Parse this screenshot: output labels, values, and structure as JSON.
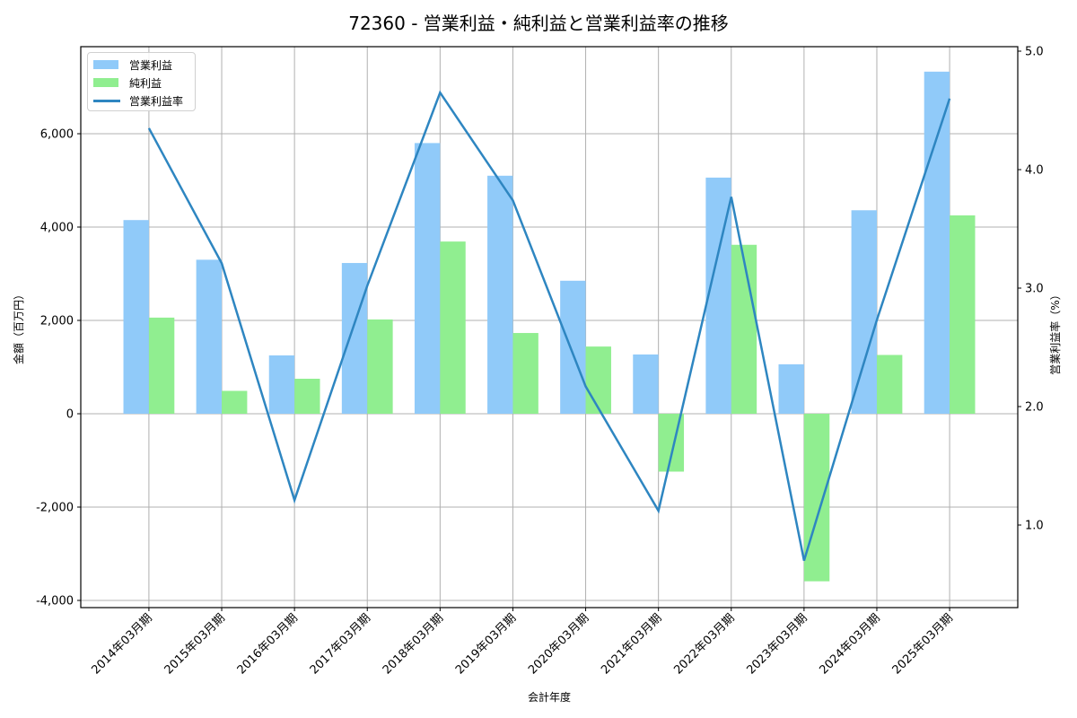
{
  "title": "72360 - 営業利益・純利益と営業利益率の推移",
  "chart_data": {
    "type": "bar",
    "title": "72360 - 営業利益・純利益と営業利益率の推移",
    "xlabel": "会計年度",
    "ylabel": "金額（百万円）",
    "y2label": "営業利益率（%）",
    "categories": [
      "2014年03月期",
      "2015年03月期",
      "2016年03月期",
      "2017年03月期",
      "2018年03月期",
      "2019年03月期",
      "2020年03月期",
      "2021年03月期",
      "2022年03月期",
      "2023年03月期",
      "2024年03月期",
      "2025年03月期"
    ],
    "series": [
      {
        "name": "営業利益",
        "type": "bar",
        "axis": "left",
        "color": "#90caf9",
        "values": [
          4150,
          3300,
          1250,
          3230,
          5800,
          5100,
          2850,
          1270,
          5060,
          1060,
          4360,
          7330
        ]
      },
      {
        "name": "純利益",
        "type": "bar",
        "axis": "left",
        "color": "#90ee90",
        "values": [
          2060,
          490,
          750,
          2020,
          3690,
          1730,
          1440,
          -1240,
          3620,
          -3590,
          1260,
          4250
        ]
      },
      {
        "name": "営業利益率",
        "type": "line",
        "axis": "right",
        "color": "#2e86c1",
        "values": [
          4.35,
          3.21,
          1.21,
          3.02,
          4.65,
          3.74,
          2.17,
          1.12,
          3.77,
          0.7,
          2.73,
          4.6
        ]
      }
    ],
    "ylim": [
      -4150,
      7850
    ],
    "y2lim": [
      0.27,
      5.05
    ],
    "yticks": [
      -4000,
      -2000,
      0,
      2000,
      4000,
      6000
    ],
    "ytick_labels": [
      "-4,000",
      "-2,000",
      "0",
      "2,000",
      "4,000",
      "6,000"
    ],
    "y2ticks": [
      1.0,
      2.0,
      3.0,
      4.0,
      5.0
    ],
    "y2tick_labels": [
      "1.0",
      "2.0",
      "3.0",
      "4.0",
      "5.0"
    ],
    "grid": true,
    "legend_position": "upper left"
  },
  "legend": {
    "items": [
      {
        "label": "営業利益",
        "color": "#90caf9",
        "kind": "bar"
      },
      {
        "label": "純利益",
        "color": "#90ee90",
        "kind": "bar"
      },
      {
        "label": "営業利益率",
        "color": "#2e86c1",
        "kind": "line"
      }
    ]
  }
}
